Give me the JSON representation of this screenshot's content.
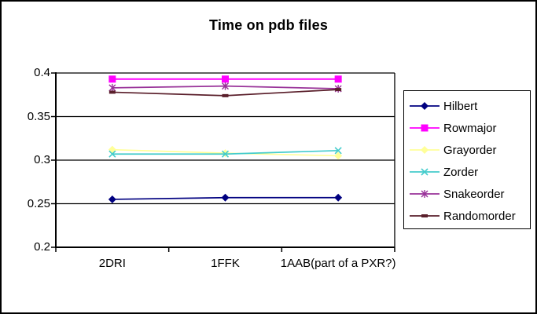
{
  "chart_data": {
    "type": "line",
    "title": "Time on pdb files",
    "categories": [
      "2DRI",
      "1FFK",
      "1AAB(part of a PXR?)"
    ],
    "series": [
      {
        "name": "Hilbert",
        "color": "#000080",
        "marker": "diamond",
        "values": [
          0.255,
          0.257,
          0.257
        ]
      },
      {
        "name": "Rowmajor",
        "color": "#FF00FF",
        "marker": "square",
        "values": [
          0.393,
          0.393,
          0.393
        ]
      },
      {
        "name": "Grayorder",
        "color": "#FFFF99",
        "marker": "diamond",
        "values": [
          0.312,
          0.308,
          0.305
        ]
      },
      {
        "name": "Zorder",
        "color": "#44CCCC",
        "marker": "x",
        "values": [
          0.307,
          0.307,
          0.311
        ]
      },
      {
        "name": "Snakeorder",
        "color": "#993399",
        "marker": "asterisk",
        "values": [
          0.383,
          0.385,
          0.382
        ]
      },
      {
        "name": "Randomorder",
        "color": "#5A1F2B",
        "marker": "dash",
        "values": [
          0.378,
          0.374,
          0.381
        ]
      }
    ],
    "ylim": [
      0.2,
      0.4
    ],
    "yticks": {
      "values": [
        0.4,
        0.35,
        0.3,
        0.25,
        0.2
      ],
      "labels": [
        "0.4",
        "0.35",
        "0.3",
        "0.25",
        "0.2"
      ]
    },
    "grid": true,
    "legend_position": "right",
    "axis_color": "#000000",
    "background_color": "#FFFFFF"
  }
}
